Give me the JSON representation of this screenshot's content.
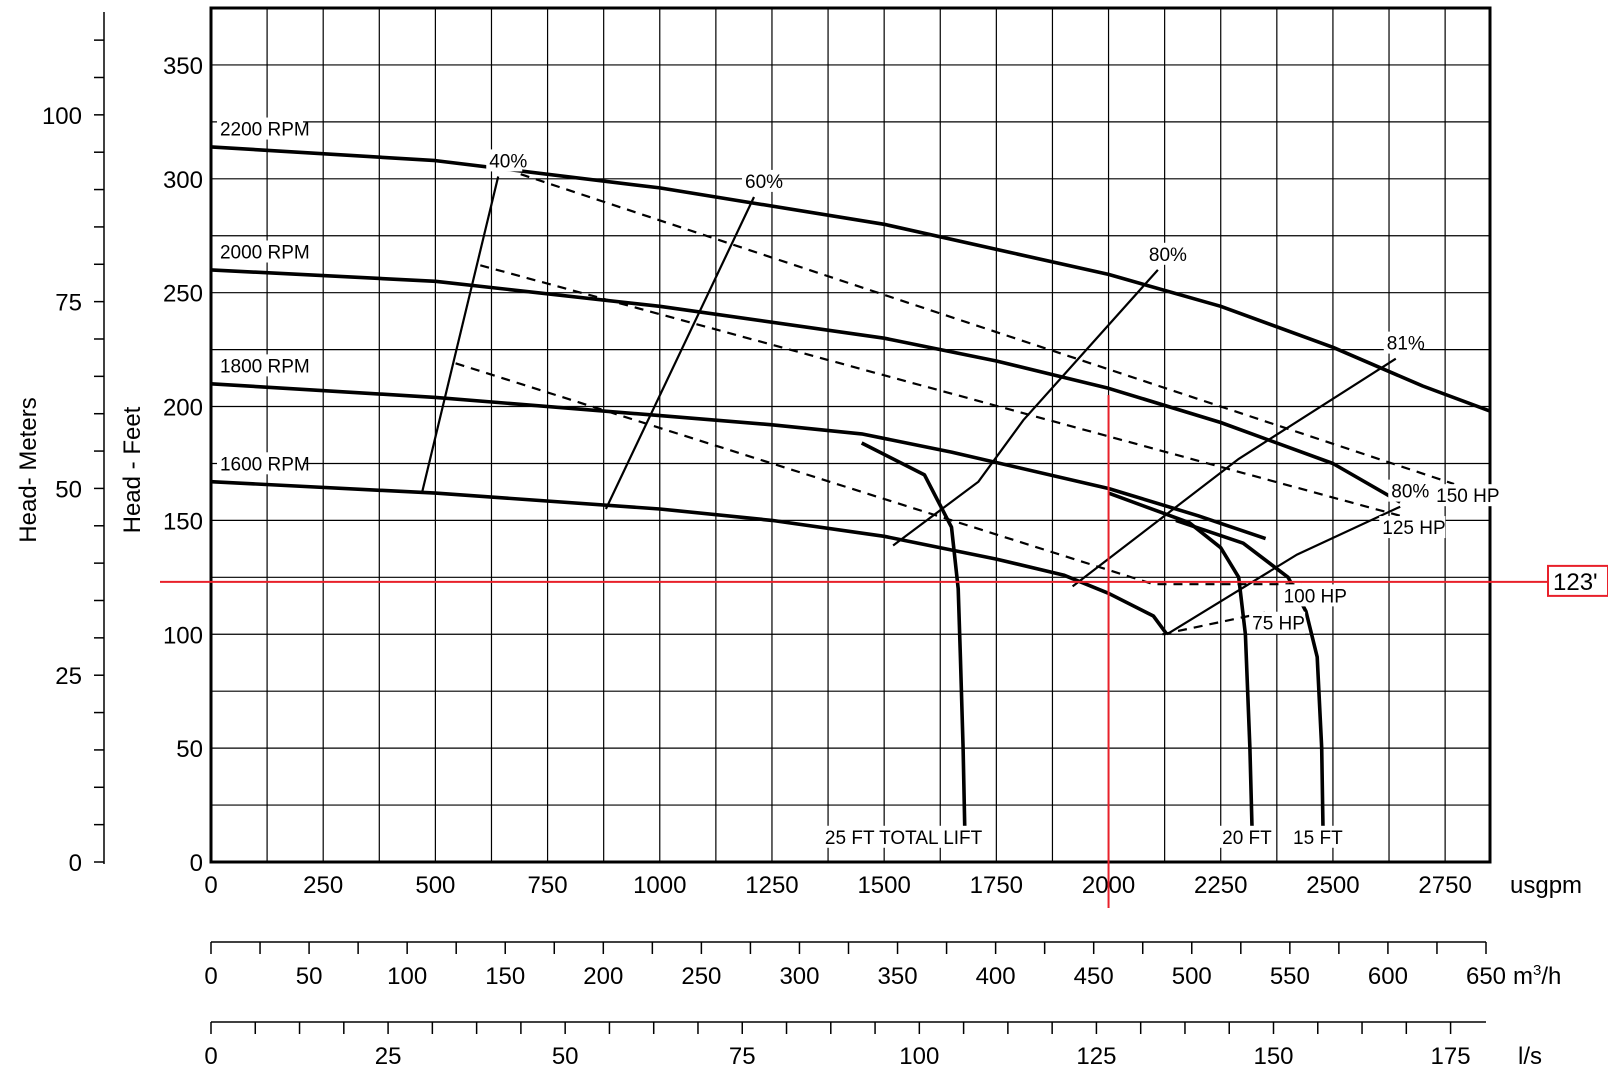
{
  "chart_data": {
    "type": "line",
    "x_axes": [
      {
        "name": "flow-usgpm",
        "unit": "usgpm",
        "range": [
          0,
          2850
        ],
        "ticks": [
          0,
          250,
          500,
          750,
          1000,
          1250,
          1500,
          1750,
          2000,
          2250,
          2500,
          2750
        ]
      },
      {
        "name": "flow-m3h",
        "unit": "m³/h",
        "range": [
          0,
          650
        ],
        "ticks": [
          0,
          50,
          100,
          150,
          200,
          250,
          300,
          350,
          400,
          450,
          500,
          550,
          600,
          650
        ]
      },
      {
        "name": "flow-ls",
        "unit": "l/s",
        "range": [
          0,
          180
        ],
        "ticks": [
          0,
          25,
          50,
          75,
          100,
          125,
          150,
          175
        ]
      }
    ],
    "y_axes": [
      {
        "name": "head-feet",
        "label": "Head - Feet",
        "range": [
          0,
          375
        ],
        "ticks": [
          0,
          50,
          100,
          150,
          200,
          250,
          300,
          350
        ]
      },
      {
        "name": "head-meters",
        "label": "Head- Meters",
        "range": [
          0,
          114.3
        ],
        "ticks": [
          0,
          25,
          50,
          75,
          100
        ]
      }
    ],
    "speed_curves": [
      {
        "label": "2200 RPM",
        "points": [
          [
            0,
            314
          ],
          [
            500,
            308
          ],
          [
            1000,
            296
          ],
          [
            1500,
            280
          ],
          [
            2000,
            258
          ],
          [
            2250,
            244
          ],
          [
            2500,
            226
          ],
          [
            2700,
            209
          ],
          [
            2850,
            198
          ]
        ]
      },
      {
        "label": "2000 RPM",
        "points": [
          [
            0,
            260
          ],
          [
            500,
            255
          ],
          [
            1000,
            244
          ],
          [
            1500,
            230
          ],
          [
            1750,
            220
          ],
          [
            2000,
            208
          ],
          [
            2250,
            193
          ],
          [
            2500,
            175
          ],
          [
            2650,
            158
          ]
        ]
      },
      {
        "label": "1800 RPM",
        "points": [
          [
            0,
            210
          ],
          [
            500,
            204
          ],
          [
            1000,
            196
          ],
          [
            1250,
            192
          ],
          [
            1450,
            188
          ],
          [
            1650,
            180
          ],
          [
            2000,
            164
          ],
          [
            2200,
            152
          ],
          [
            2350,
            142
          ]
        ]
      },
      {
        "label": "1600 RPM",
        "points": [
          [
            0,
            167
          ],
          [
            500,
            162
          ],
          [
            1000,
            155
          ],
          [
            1250,
            150
          ],
          [
            1500,
            143
          ],
          [
            1750,
            133
          ],
          [
            1900,
            126
          ],
          [
            2000,
            118
          ],
          [
            2100,
            108
          ],
          [
            2130,
            100
          ]
        ]
      }
    ],
    "efficiency_curves": [
      {
        "label": "40%",
        "points": [
          [
            470,
            162
          ],
          [
            640,
            301
          ]
        ]
      },
      {
        "label": "60%",
        "points": [
          [
            880,
            155
          ],
          [
            1210,
            292
          ]
        ]
      },
      {
        "label": "80%",
        "points": [
          [
            1520,
            139
          ],
          [
            1710,
            167
          ],
          [
            1810,
            194
          ],
          [
            2110,
            260
          ]
        ]
      },
      {
        "label": "81%",
        "points": [
          [
            1920,
            121
          ],
          [
            2290,
            177
          ],
          [
            2640,
            221
          ]
        ]
      },
      {
        "label": "80%",
        "points": [
          [
            2130,
            100
          ],
          [
            2420,
            135
          ],
          [
            2650,
            156
          ]
        ]
      }
    ],
    "power_curves": [
      {
        "label": "150 HP",
        "points": [
          [
            690,
            302
          ],
          [
            2770,
            166
          ]
        ]
      },
      {
        "label": "125 HP",
        "points": [
          [
            600,
            262
          ],
          [
            2650,
            152
          ]
        ]
      },
      {
        "label": "100 HP",
        "points": [
          [
            545,
            219
          ],
          [
            2100,
            122
          ],
          [
            2430,
            122
          ]
        ]
      },
      {
        "label": "75 HP",
        "points": [
          [
            2120,
            100
          ],
          [
            2360,
            110
          ]
        ]
      }
    ],
    "total_lift_curves": [
      {
        "label": "25 FT TOTAL LIFT",
        "points": [
          [
            1450,
            184
          ],
          [
            1590,
            170
          ],
          [
            1650,
            147
          ],
          [
            1665,
            120
          ],
          [
            1670,
            90
          ],
          [
            1676,
            50
          ],
          [
            1680,
            12
          ]
        ]
      },
      {
        "label": "20 FT",
        "points": [
          [
            2000,
            162
          ],
          [
            2180,
            149
          ],
          [
            2250,
            138
          ],
          [
            2290,
            125
          ],
          [
            2305,
            100
          ],
          [
            2315,
            50
          ],
          [
            2320,
            12
          ]
        ]
      },
      {
        "label": "15 FT",
        "points": [
          [
            2150,
            150
          ],
          [
            2300,
            140
          ],
          [
            2400,
            125
          ],
          [
            2440,
            110
          ],
          [
            2465,
            90
          ],
          [
            2475,
            50
          ],
          [
            2478,
            12
          ]
        ]
      }
    ],
    "operating_point": {
      "flow_usgpm": 2000,
      "head_ft": 123
    },
    "reference_lines": [
      {
        "orientation": "horizontal",
        "value": 123,
        "label": "123'",
        "color": "#e8202a"
      },
      {
        "orientation": "vertical",
        "value": 2000,
        "color": "#e8202a"
      }
    ],
    "grid": true
  }
}
